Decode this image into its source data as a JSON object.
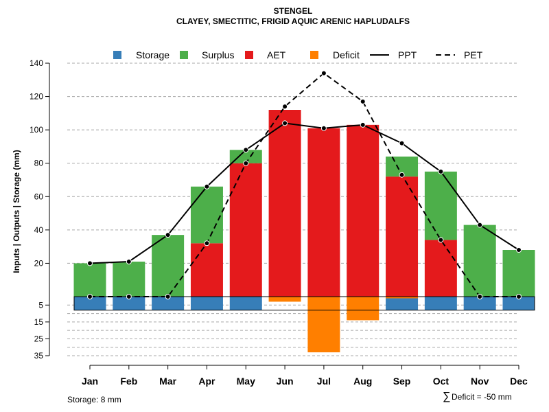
{
  "chart_data": {
    "type": "bar",
    "title": "STENGEL",
    "subtitle": "CLAYEY, SMECTITIC, FRIGID AQUIC ARENIC HAPLUDALFS",
    "ylabel": "Inputs | Outputs | Storage    (mm)",
    "xlabel": "",
    "categories": [
      "Jan",
      "Feb",
      "Mar",
      "Apr",
      "May",
      "Jun",
      "Jul",
      "Aug",
      "Sep",
      "Oct",
      "Nov",
      "Dec"
    ],
    "ylim_upper": [
      0,
      140
    ],
    "ylim_lower": [
      0,
      35
    ],
    "upper_ticks": [
      20,
      40,
      60,
      80,
      100,
      120,
      140
    ],
    "lower_ticks": [
      5,
      15,
      25,
      35
    ],
    "grid": true,
    "legend_position": "top",
    "legend": [
      {
        "label": "Storage",
        "kind": "box",
        "color": "#377EB8"
      },
      {
        "label": "Surplus",
        "kind": "box",
        "color": "#4DAF4A"
      },
      {
        "label": "AET",
        "kind": "box",
        "color": "#E41A1C"
      },
      {
        "label": "Deficit",
        "kind": "box",
        "color": "#FF7F00"
      },
      {
        "label": "PPT",
        "kind": "line",
        "dash": "solid",
        "color": "#000000"
      },
      {
        "label": "PET",
        "kind": "line",
        "dash": "dashed",
        "color": "#000000"
      }
    ],
    "series": [
      {
        "name": "AET",
        "values": [
          0,
          0,
          0,
          32,
          80,
          112,
          101,
          103,
          72,
          34,
          0,
          0
        ]
      },
      {
        "name": "Surplus",
        "values": [
          20,
          21,
          37,
          34,
          8,
          0,
          0,
          0,
          12,
          41,
          43,
          28
        ]
      },
      {
        "name": "Storage",
        "values": [
          8,
          8,
          8,
          8,
          8,
          0,
          0,
          0,
          8,
          8,
          8,
          8
        ]
      },
      {
        "name": "Deficit",
        "values": [
          0,
          0,
          0,
          0,
          0,
          3,
          33,
          14,
          1,
          0,
          0,
          0
        ]
      },
      {
        "name": "PPT",
        "values": [
          20,
          21,
          37,
          66,
          88,
          104,
          101,
          103,
          92,
          75,
          43,
          28
        ]
      },
      {
        "name": "PET",
        "values": [
          0,
          0,
          0,
          32,
          80,
          114,
          134,
          117,
          73,
          34,
          0,
          0
        ]
      }
    ],
    "annotations": {
      "storage_note": "Storage: 8 mm",
      "deficit_symbol": "∑",
      "deficit_note": "Deficit = -50 mm"
    }
  }
}
